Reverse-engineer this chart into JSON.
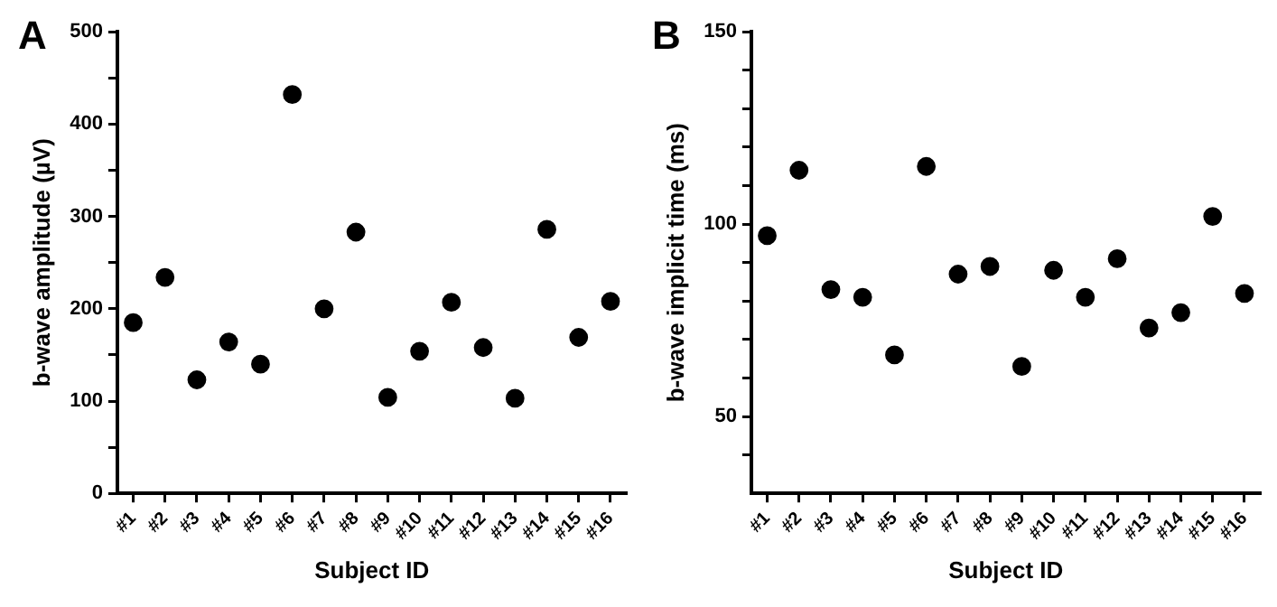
{
  "chart_data": [
    {
      "type": "scatter",
      "title": "A",
      "xlabel": "Subject ID",
      "ylabel": "b-wave amplitude (µV)",
      "categories": [
        "#1",
        "#2",
        "#3",
        "#4",
        "#5",
        "#6",
        "#7",
        "#8",
        "#9",
        "#10",
        "#11",
        "#12",
        "#13",
        "#14",
        "#15",
        "#16"
      ],
      "series": [
        {
          "color": "#000000",
          "values": [
            185,
            234,
            123,
            164,
            140,
            432,
            200,
            283,
            104,
            154,
            207,
            158,
            103,
            286,
            169,
            208
          ]
        }
      ],
      "ylim": [
        0,
        500
      ],
      "yticks": [
        0,
        {
          "value": 50,
          "label": null
        },
        100,
        {
          "value": 150,
          "label": null
        },
        200,
        {
          "value": 250,
          "label": null
        },
        300,
        {
          "value": 350,
          "label": null
        },
        400,
        {
          "value": 450,
          "label": null
        },
        500
      ],
      "grid": false,
      "legend": false,
      "marker": "circle"
    },
    {
      "type": "scatter",
      "title": "B",
      "xlabel": "Subject ID",
      "ylabel": "b-wave implicit time (ms)",
      "categories": [
        "#1",
        "#2",
        "#3",
        "#4",
        "#5",
        "#6",
        "#7",
        "#8",
        "#9",
        "#10",
        "#11",
        "#12",
        "#13",
        "#14",
        "#15",
        "#16"
      ],
      "series": [
        {
          "color": "#000000",
          "values": [
            97,
            114,
            83,
            81,
            66,
            115,
            87,
            89,
            63,
            88,
            81,
            91,
            73,
            77,
            102,
            82
          ]
        }
      ],
      "ylim": [
        30,
        150
      ],
      "yticks": [
        {
          "value": 40,
          "label": null
        },
        50,
        {
          "value": 60,
          "label": null
        },
        {
          "value": 70,
          "label": null
        },
        {
          "value": 80,
          "label": null
        },
        {
          "value": 90,
          "label": null
        },
        100,
        {
          "value": 110,
          "label": null
        },
        {
          "value": 120,
          "label": null
        },
        {
          "value": 130,
          "label": null
        },
        {
          "value": 140,
          "label": null
        },
        150
      ],
      "grid": false,
      "legend": false,
      "marker": "circle"
    }
  ]
}
